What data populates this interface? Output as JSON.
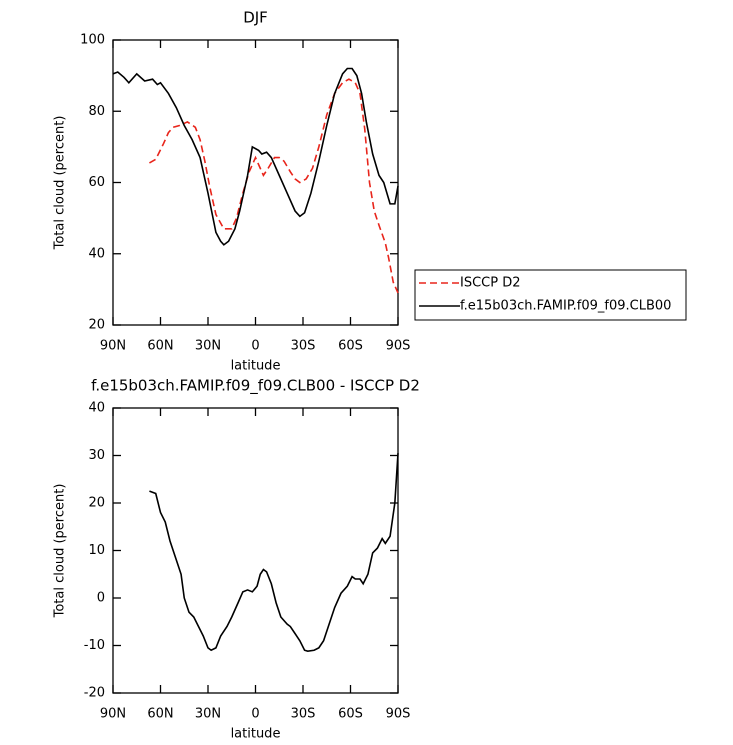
{
  "chart_data": [
    {
      "type": "line",
      "title": "DJF",
      "xlabel": "latitude",
      "ylabel": "Total cloud (percent)",
      "xlim": [
        90,
        -90
      ],
      "ylim": [
        20,
        100
      ],
      "xticks": [
        {
          "value": 90,
          "label": "90N"
        },
        {
          "value": 60,
          "label": "60N"
        },
        {
          "value": 30,
          "label": "30N"
        },
        0,
        {
          "value": -30,
          "label": "30S"
        },
        {
          "value": -60,
          "label": "60S"
        },
        {
          "value": -90,
          "label": "90S"
        }
      ],
      "yticks": [
        20,
        40,
        60,
        80,
        100
      ],
      "legend": "right",
      "series": [
        {
          "name": "ISCCP D2",
          "color": "#e8251b",
          "dash": "dashed",
          "x": [
            67,
            63,
            58,
            55,
            52,
            48,
            43,
            38,
            35,
            32,
            29,
            25,
            20,
            15,
            12,
            8,
            4,
            0,
            -3,
            -5,
            -8,
            -12,
            -15,
            -18,
            -22,
            -25,
            -28,
            -32,
            -36,
            -40,
            -45,
            -50,
            -55,
            -59,
            -63,
            -66,
            -69,
            -72,
            -75,
            -78,
            -82,
            -84,
            -87,
            -90
          ],
          "values": [
            65.5,
            66.5,
            71,
            74,
            75.5,
            76,
            77,
            75.5,
            72,
            66,
            59,
            51,
            47,
            47,
            50,
            57,
            63,
            67,
            64,
            62,
            64,
            67,
            67,
            66,
            63,
            61,
            60,
            61,
            64,
            70,
            79,
            85,
            88,
            89,
            88,
            85,
            75,
            60,
            52,
            48,
            43,
            39,
            32,
            29
          ]
        },
        {
          "name": "f.e15b03ch.FAMIP.f09_f09.CLB00",
          "color": "#000000",
          "dash": "solid",
          "x": [
            90,
            87,
            83,
            80,
            75,
            70,
            65,
            62,
            60,
            55,
            50,
            45,
            40,
            35,
            30,
            25,
            22,
            20,
            17,
            13,
            10,
            5,
            2,
            -2,
            -4,
            -7,
            -10,
            -15,
            -20,
            -25,
            -28,
            -31,
            -35,
            -40,
            -45,
            -50,
            -55,
            -58,
            -61,
            -64,
            -67,
            -70,
            -74,
            -78,
            -81,
            -85,
            -88,
            -90
          ],
          "values": [
            90.5,
            91,
            89.5,
            88,
            90.5,
            88.5,
            89,
            87.5,
            88,
            85,
            81,
            76,
            72,
            67,
            57,
            46,
            43.5,
            42.5,
            43.5,
            47,
            52,
            62,
            70,
            69,
            68,
            68.5,
            67,
            62,
            57,
            52,
            50.5,
            51.5,
            57,
            66,
            76,
            85,
            90.5,
            92,
            92,
            90,
            85,
            77,
            68,
            62,
            60,
            54,
            54,
            59
          ]
        }
      ]
    },
    {
      "type": "line",
      "title": "f.e15b03ch.FAMIP.f09_f09.CLB00 - ISCCP D2",
      "xlabel": "latitude",
      "ylabel": "Total cloud (percent)",
      "xlim": [
        90,
        -90
      ],
      "ylim": [
        -20,
        40
      ],
      "xticks": [
        {
          "value": 90,
          "label": "90N"
        },
        {
          "value": 60,
          "label": "60N"
        },
        {
          "value": 30,
          "label": "30N"
        },
        0,
        {
          "value": -30,
          "label": "30S"
        },
        {
          "value": -60,
          "label": "60S"
        },
        {
          "value": -90,
          "label": "90S"
        }
      ],
      "yticks": [
        -20,
        -10,
        0,
        10,
        20,
        30,
        40
      ],
      "series": [
        {
          "color": "#000000",
          "dash": "solid",
          "x": [
            67,
            63,
            60,
            57,
            54,
            50,
            47,
            45,
            42,
            39,
            36,
            33,
            30,
            28,
            25,
            22,
            18,
            15,
            11,
            8,
            5,
            2,
            -1,
            -3,
            -5,
            -7,
            -10,
            -13,
            -16,
            -20,
            -22,
            -25,
            -28,
            -31,
            -33,
            -37,
            -40,
            -43,
            -46,
            -50,
            -54,
            -58,
            -61,
            -63,
            -66,
            -68,
            -71,
            -74,
            -77,
            -80,
            -82,
            -85,
            -88,
            -90
          ],
          "values": [
            22.5,
            22,
            18,
            16,
            12,
            8,
            5,
            0,
            -3,
            -4,
            -6,
            -8,
            -10.5,
            -11,
            -10.5,
            -8,
            -6,
            -4,
            -1,
            1.3,
            1.7,
            1.3,
            2.5,
            5,
            6,
            5.5,
            3,
            -1,
            -4,
            -5.5,
            -6,
            -7.5,
            -9,
            -11,
            -11.2,
            -11,
            -10.5,
            -9,
            -6,
            -2,
            1,
            2.5,
            4.5,
            4,
            4,
            3,
            5,
            9.5,
            10.5,
            12.5,
            11.5,
            13,
            20,
            30.5
          ]
        }
      ]
    }
  ]
}
